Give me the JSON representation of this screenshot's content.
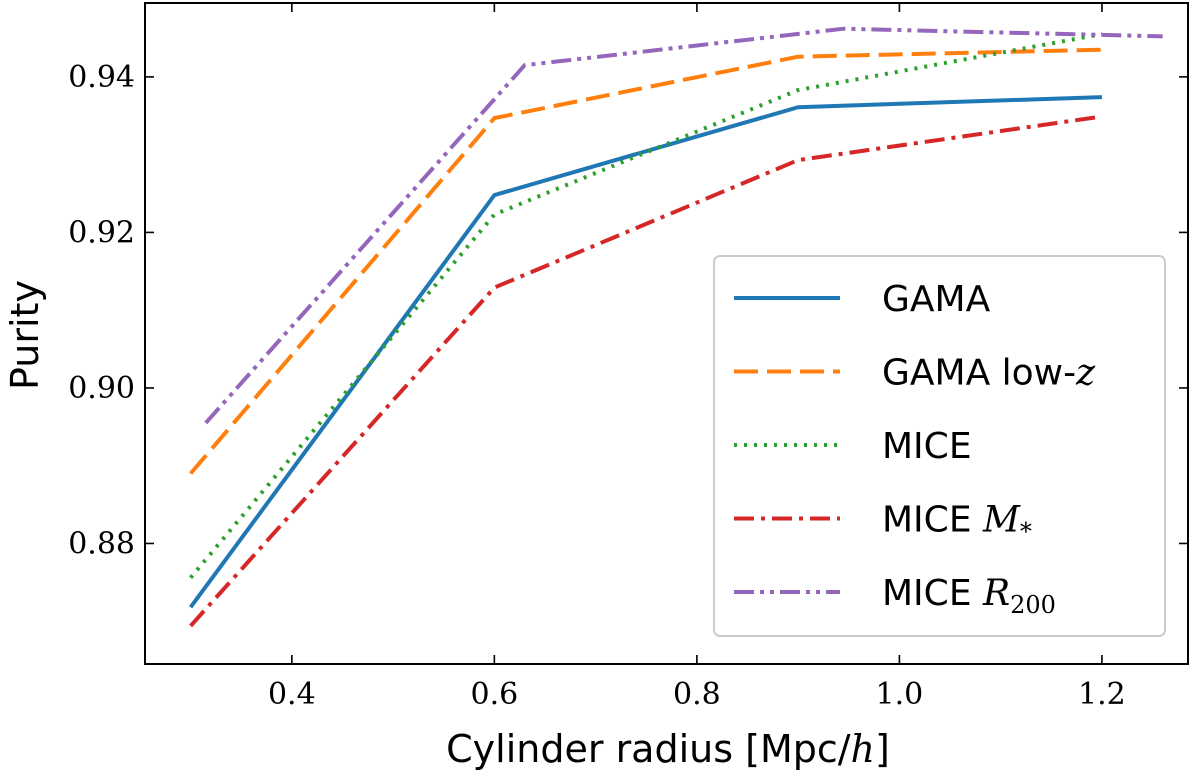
{
  "chart_data": {
    "type": "line",
    "title": "",
    "xlabel_prefix": "Cylinder radius [Mpc/",
    "xlabel_var": "h",
    "xlabel_suffix": "]",
    "ylabel": "Purity",
    "xlim": [
      0.255,
      1.285
    ],
    "ylim": [
      0.8645,
      0.9495
    ],
    "xticks": [
      0.4,
      0.6,
      0.8,
      1.0,
      1.2
    ],
    "xtick_labels": [
      "0.4",
      "0.6",
      "0.8",
      "1.0",
      "1.2"
    ],
    "yticks": [
      0.88,
      0.9,
      0.92,
      0.94
    ],
    "ytick_labels": [
      "0.88",
      "0.90",
      "0.92",
      "0.94"
    ],
    "legend_position": "lower-right",
    "series": [
      {
        "name": "GAMA",
        "label_text": "GAMA",
        "label_math": "",
        "label_sub": "",
        "color": "#1f77b4",
        "style": "solid",
        "x": [
          0.3,
          0.6,
          0.9,
          1.2
        ],
        "y": [
          0.8718,
          0.9248,
          0.9361,
          0.9374
        ]
      },
      {
        "name": "GAMA low-z",
        "label_text": "GAMA low-",
        "label_math": "z",
        "label_sub": "",
        "color": "#ff7f0e",
        "style": "dashed",
        "x": [
          0.3,
          0.6,
          0.9,
          1.2
        ],
        "y": [
          0.889,
          0.9347,
          0.9426,
          0.9435
        ]
      },
      {
        "name": "MICE",
        "label_text": "MICE",
        "label_math": "",
        "label_sub": "",
        "color": "#2ca02c",
        "style": "dotted",
        "x": [
          0.3,
          0.6,
          0.9,
          1.2
        ],
        "y": [
          0.8756,
          0.9223,
          0.9383,
          0.9455
        ]
      },
      {
        "name": "MICE M*",
        "label_text": "MICE ",
        "label_math": "M",
        "label_sub": "*",
        "color": "#d62728",
        "style": "dashdot",
        "x": [
          0.3,
          0.6,
          0.9,
          1.2
        ],
        "y": [
          0.8694,
          0.9129,
          0.9293,
          0.9349
        ]
      },
      {
        "name": "MICE R200",
        "label_text": "MICE ",
        "label_math": "R",
        "label_sub": "200",
        "color": "#9467bd",
        "style": "dashdotdot",
        "x": [
          0.315,
          0.63,
          0.945,
          1.26
        ],
        "y": [
          0.8955,
          0.9415,
          0.9462,
          0.9452
        ]
      }
    ]
  }
}
